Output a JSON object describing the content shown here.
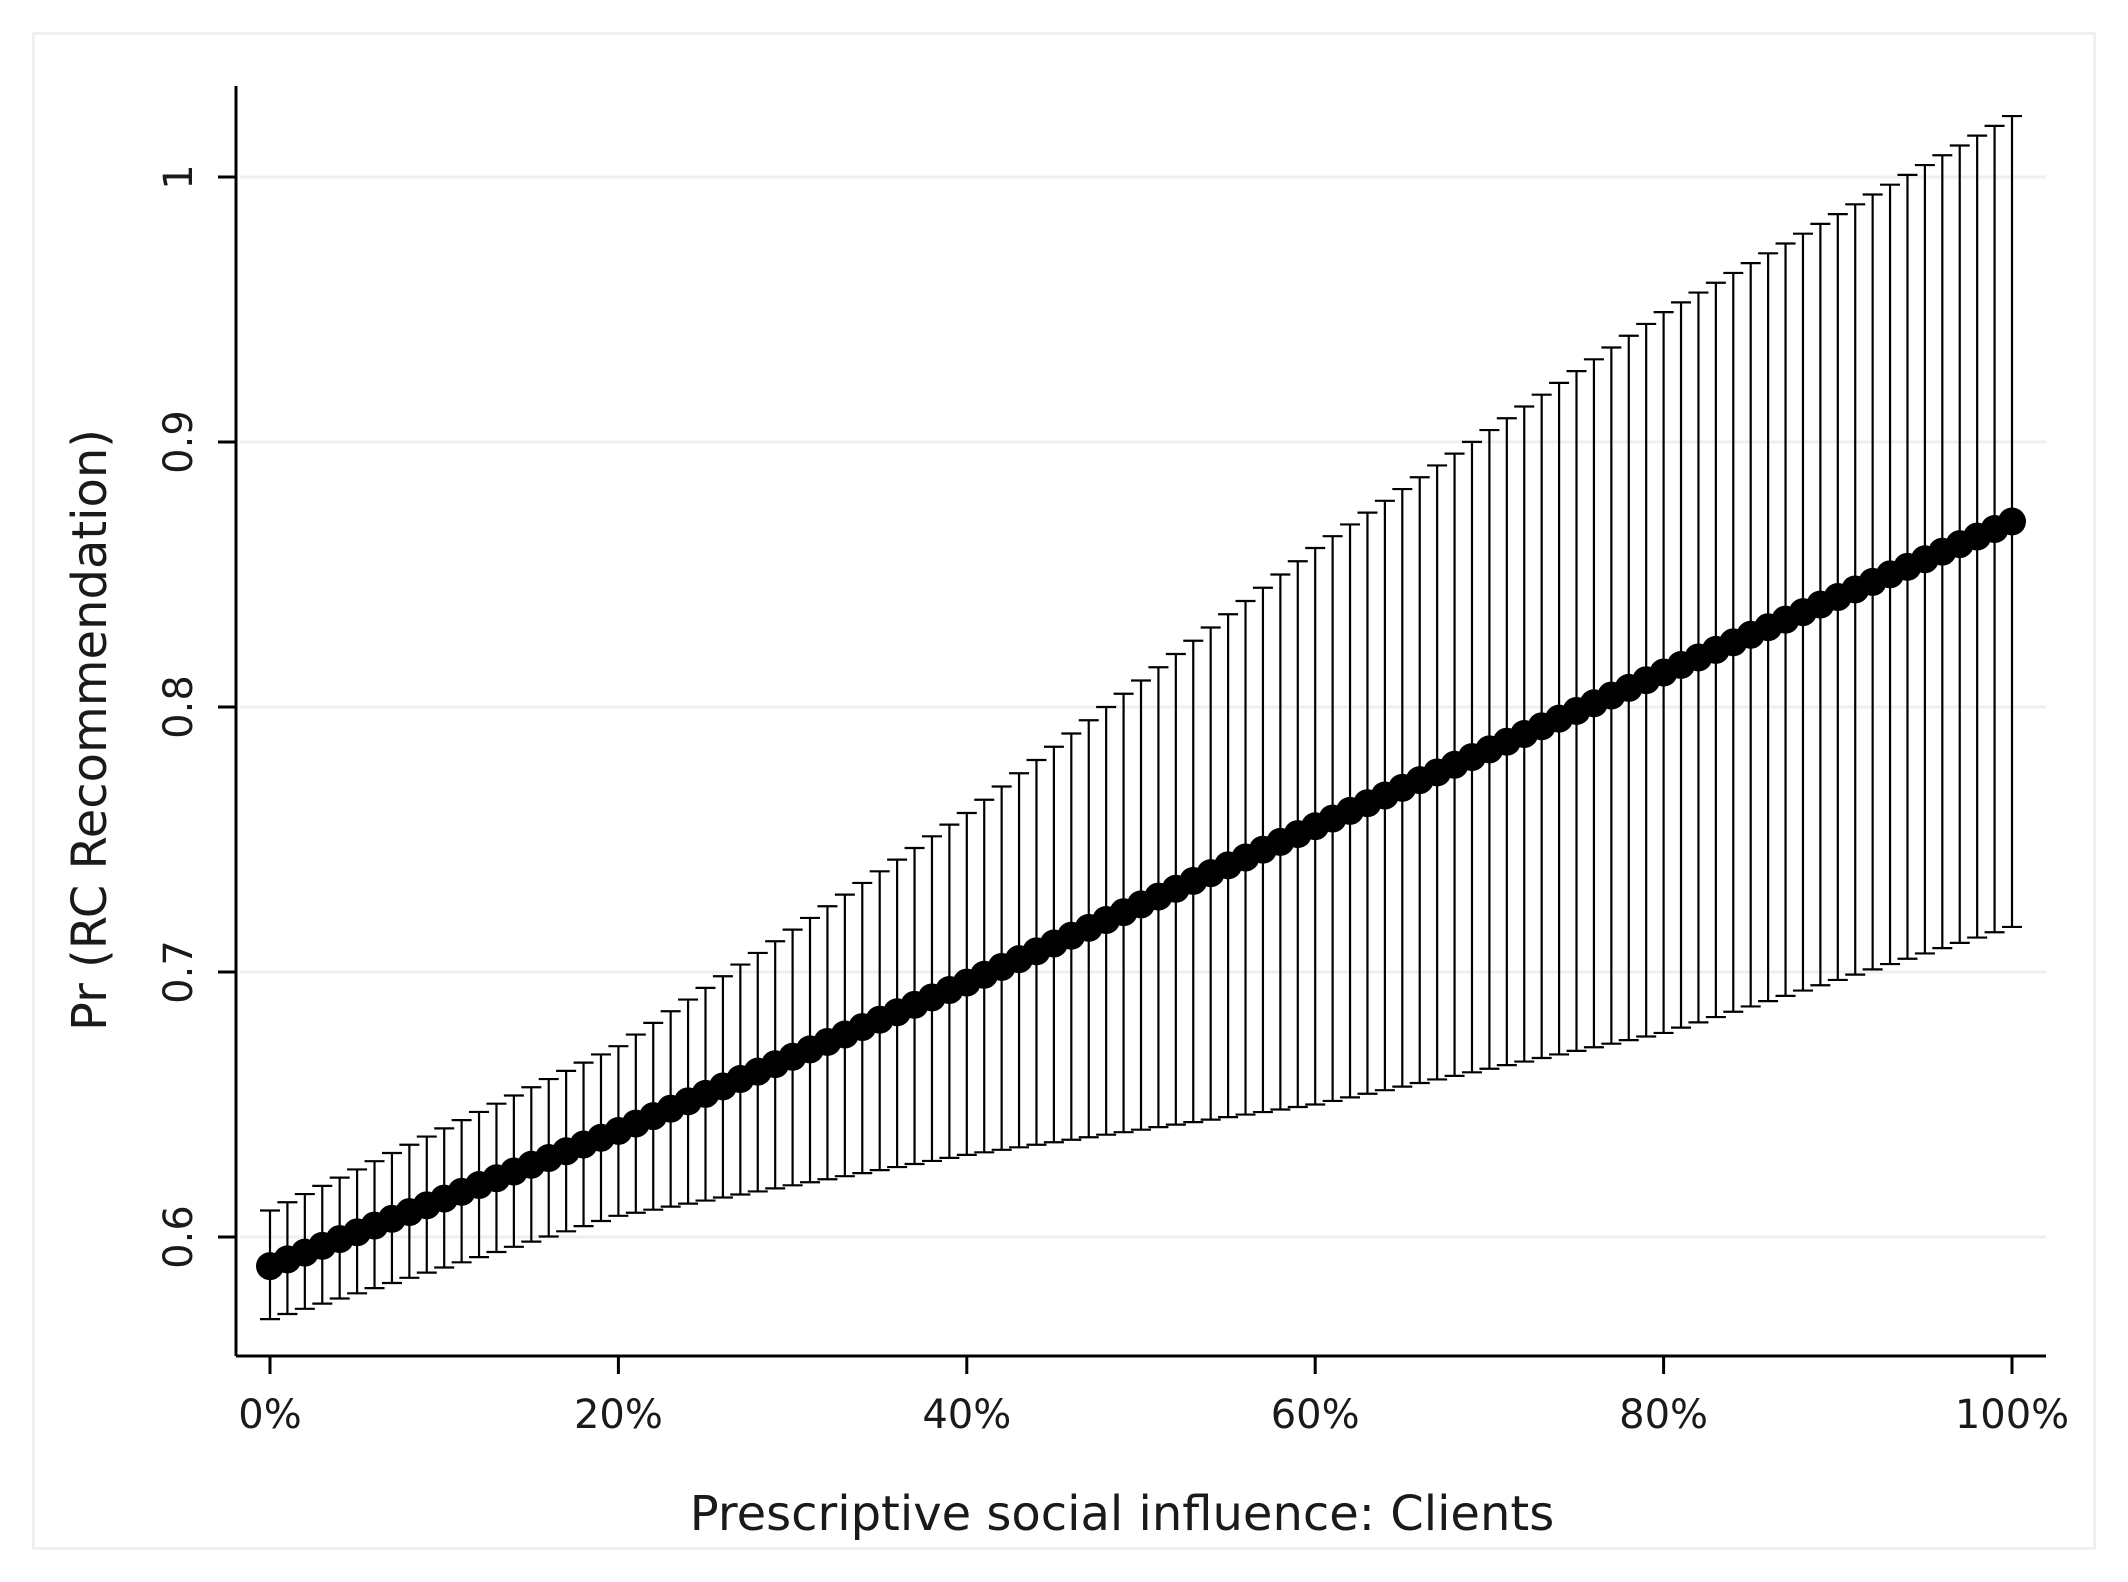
{
  "chart_data": {
    "type": "scatter",
    "title": "",
    "xlabel": "Prescriptive social influence: Clients",
    "ylabel": "Pr (RC Recommendation)",
    "xlim": [
      0,
      1
    ],
    "ylim": [
      0.555,
      1.035
    ],
    "x_ticks": [
      {
        "value": 0.0,
        "label": "0%"
      },
      {
        "value": 0.2,
        "label": "20%"
      },
      {
        "value": 0.4,
        "label": "40%"
      },
      {
        "value": 0.6,
        "label": "60%"
      },
      {
        "value": 0.8,
        "label": "80%"
      },
      {
        "value": 1.0,
        "label": "100%"
      }
    ],
    "y_ticks": [
      {
        "value": 0.6,
        "label": "0.6"
      },
      {
        "value": 0.7,
        "label": "0.7"
      },
      {
        "value": 0.8,
        "label": "0.8"
      },
      {
        "value": 0.9,
        "label": "0.9"
      },
      {
        "value": 1.0,
        "label": "1"
      }
    ],
    "grid": "horizontal",
    "series": [
      {
        "x_start": 0.0,
        "x_end": 1.0,
        "n_points": 101,
        "anchors": [
          {
            "x": 0.0,
            "y": 0.589,
            "lower": 0.569,
            "upper": 0.61
          },
          {
            "x": 0.2,
            "y": 0.64,
            "lower": 0.608,
            "upper": 0.672
          },
          {
            "x": 0.4,
            "y": 0.696,
            "lower": 0.631,
            "upper": 0.76
          },
          {
            "x": 0.6,
            "y": 0.755,
            "lower": 0.65,
            "upper": 0.86
          },
          {
            "x": 0.8,
            "y": 0.813,
            "lower": 0.677,
            "upper": 0.949
          },
          {
            "x": 1.0,
            "y": 0.87,
            "lower": 0.717,
            "upper": 1.023
          }
        ]
      }
    ],
    "colors": {
      "marker": "#000000",
      "error_bar": "#000000",
      "axis": "#000000",
      "grid": "#eaf1f2",
      "frame": "#edf1f2"
    }
  }
}
